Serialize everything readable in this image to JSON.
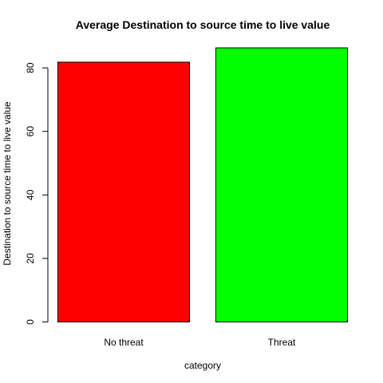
{
  "chart_data": {
    "type": "bar",
    "title": "Average Destination to source time to live value",
    "xlabel": "category",
    "ylabel": "Destination to source time to live value",
    "categories": [
      "No threat",
      "Threat"
    ],
    "values": [
      81.8,
      86.3
    ],
    "colors": [
      "#ff0000",
      "#00ff00"
    ],
    "ylim": [
      0,
      86.3
    ],
    "yticks": [
      0,
      20,
      40,
      60,
      80
    ],
    "grid": false,
    "legend": "none"
  }
}
